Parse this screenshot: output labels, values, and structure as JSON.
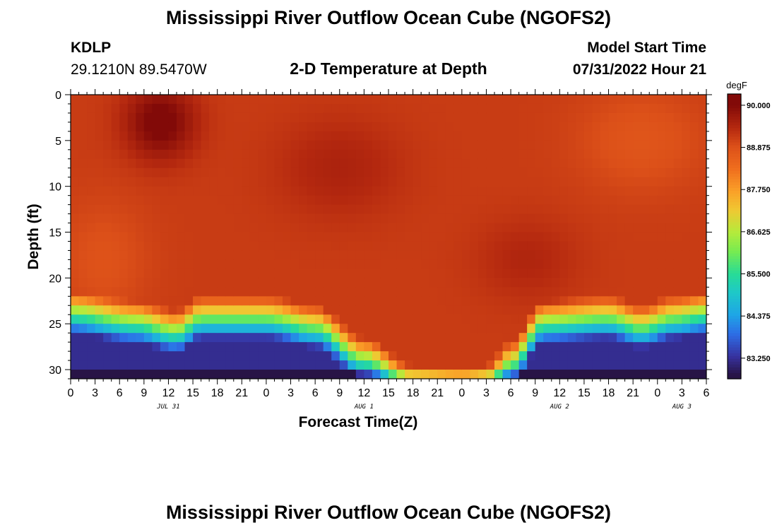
{
  "page": {
    "title_top": "Mississippi River Outflow Ocean Cube (NGOFS2)",
    "title_bottom": "Mississippi River Outflow Ocean Cube (NGOFS2)",
    "station_id": "KDLP",
    "coordinates": "29.1210N  89.5470W",
    "plot_title": "2-D Temperature at Depth",
    "model_start_label": "Model Start Time",
    "model_start_value": "07/31/2022 Hour 21"
  },
  "chart_data": {
    "type": "heatmap",
    "title": "2-D Temperature at Depth",
    "xlabel": "Forecast Time(Z)",
    "ylabel": "Depth (ft)",
    "x_tick_labels": [
      "0",
      "3",
      "6",
      "9",
      "12",
      "15",
      "18",
      "21",
      "0",
      "3",
      "6",
      "9",
      "12",
      "15",
      "18",
      "21",
      "0",
      "3",
      "6",
      "9",
      "12",
      "15",
      "18",
      "21",
      "0",
      "3",
      "6"
    ],
    "x_range_hours": [
      0,
      78
    ],
    "date_labels": [
      {
        "label": "JUL 31",
        "hour": 12
      },
      {
        "label": "AUG 1",
        "hour": 36
      },
      {
        "label": "AUG 2",
        "hour": 60
      },
      {
        "label": "AUG 3",
        "hour": 75
      }
    ],
    "y_ticks": [
      0,
      5,
      10,
      15,
      20,
      25,
      30
    ],
    "y_range_ft": [
      0,
      31
    ],
    "colorbar": {
      "unit": "degF",
      "tick_labels": [
        "90.000",
        "88.875",
        "87.750",
        "86.625",
        "85.500",
        "84.375",
        "83.250"
      ],
      "tick_values": [
        90.0,
        88.875,
        87.75,
        86.625,
        85.5,
        84.375,
        83.25
      ],
      "range": [
        82.7,
        90.3
      ]
    },
    "thermocline_depth_ft_keyframes": [
      {
        "hour": 0,
        "depth": 21.5
      },
      {
        "hour": 8,
        "depth": 22.5
      },
      {
        "hour": 13,
        "depth": 23.5
      },
      {
        "hour": 16,
        "depth": 22.0
      },
      {
        "hour": 24,
        "depth": 22.0
      },
      {
        "hour": 30,
        "depth": 23.0
      },
      {
        "hour": 36,
        "depth": 26.5
      },
      {
        "hour": 42,
        "depth": 29.5
      },
      {
        "hour": 48,
        "depth": 29.8
      },
      {
        "hour": 51,
        "depth": 29.5
      },
      {
        "hour": 54,
        "depth": 27.0
      },
      {
        "hour": 58,
        "depth": 22.5
      },
      {
        "hour": 66,
        "depth": 22.0
      },
      {
        "hour": 70,
        "depth": 23.0
      },
      {
        "hour": 74,
        "depth": 22.0
      },
      {
        "hour": 78,
        "depth": 21.5
      }
    ],
    "upper_layer_temp_range_degF": [
      88.3,
      90.0
    ],
    "bottom_temp_min_degF": 82.8,
    "warm_core": {
      "hour": 11,
      "depth_ft": 3,
      "temp_degF": 90.0
    }
  }
}
